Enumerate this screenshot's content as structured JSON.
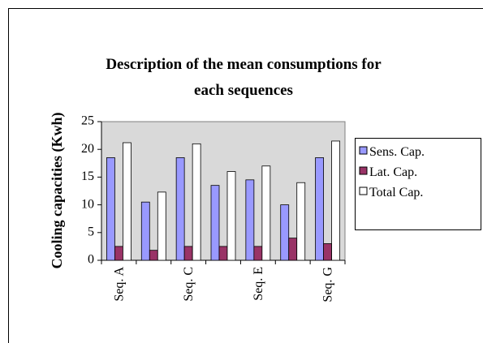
{
  "chart_data": {
    "type": "bar",
    "title": [
      "Description of the mean consumptions for",
      "each sequences"
    ],
    "y_label": "Cooling capacities (Kwh)",
    "categories": [
      "Seq. A",
      null,
      "Seq. C",
      null,
      "Seq. E",
      null,
      "Seq. G"
    ],
    "series": [
      {
        "name": "Sens. Cap.",
        "color": "#9999ff",
        "values": [
          18.5,
          10.5,
          18.5,
          13.5,
          14.5,
          10,
          18.5
        ]
      },
      {
        "name": "Lat. Cap.",
        "color": "#993366",
        "values": [
          2.5,
          1.8,
          2.5,
          2.5,
          2.5,
          4,
          3
        ]
      },
      {
        "name": "Total Cap.",
        "color": "#ffffff",
        "values": [
          21.2,
          12.3,
          21,
          16,
          17,
          14,
          21.5
        ]
      }
    ],
    "ylim": [
      0,
      25
    ],
    "yticks": [
      0,
      5,
      10,
      15,
      20,
      25
    ],
    "legend": "right"
  }
}
